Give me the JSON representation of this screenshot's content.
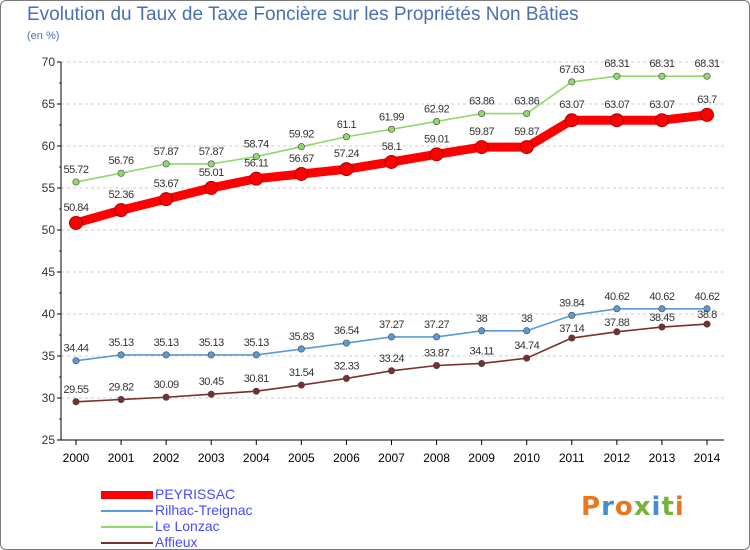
{
  "page": {
    "title": "Evolution du Taux de Taxe Foncière sur les Propriétés Non Bâties",
    "unit": "(en %)",
    "logo_text": "Proxiti"
  },
  "colors": {
    "title": "#4a6fb3",
    "grid": "#cccccc",
    "axis": "#000000",
    "legend_text": "#4a4aff",
    "logo": [
      "#e87722",
      "#3f8fd2",
      "#e87722",
      "#77b23b",
      "#3f8fd2",
      "#77b23b",
      "#e87722"
    ]
  },
  "chart_data": {
    "type": "line",
    "title": "Evolution du Taux de Taxe Foncière sur les Propriétés Non Bâties",
    "ylabel": "(en %)",
    "xlabel": "",
    "ylim": [
      25,
      70
    ],
    "yticks": [
      25,
      30,
      35,
      40,
      45,
      50,
      55,
      60,
      65,
      70
    ],
    "grid": "horizontal dashed",
    "legend_position": "bottom-left",
    "categories": [
      "2000",
      "2001",
      "2002",
      "2003",
      "2004",
      "2005",
      "2006",
      "2007",
      "2008",
      "2009",
      "2010",
      "2011",
      "2012",
      "2013",
      "2014"
    ],
    "series": [
      {
        "name": "PEYRISSAC",
        "color": "#ff0000",
        "values": [
          50.84,
          52.36,
          53.67,
          55.01,
          56.11,
          56.67,
          57.24,
          58.1,
          59.01,
          59.87,
          59.87,
          63.07,
          63.07,
          63.07,
          63.7
        ],
        "labels": [
          "50.84",
          "52.36",
          "53.67",
          "55.01",
          "56.11",
          "56.67",
          "57.24",
          "58.1",
          "59.01",
          "59.87",
          "59.87",
          "63.07",
          "63.07",
          "63.07",
          "63.7"
        ]
      },
      {
        "name": "Rilhac-Treignac",
        "color": "#5b9bd5",
        "values": [
          34.44,
          35.13,
          35.13,
          35.13,
          35.13,
          35.83,
          36.54,
          37.27,
          37.27,
          38,
          38,
          39.84,
          40.62,
          40.62,
          40.62
        ],
        "labels": [
          "34.44",
          "35.13",
          "35.13",
          "35.13",
          "35.13",
          "35.83",
          "36.54",
          "37.27",
          "37.27",
          "38",
          "38",
          "39.84",
          "40.62",
          "40.62",
          "40.62"
        ]
      },
      {
        "name": "Le Lonzac",
        "color": "#8fd86a",
        "values": [
          55.72,
          56.76,
          57.87,
          57.87,
          58.74,
          59.92,
          61.1,
          61.99,
          62.92,
          63.86,
          63.86,
          67.63,
          68.31,
          68.31,
          68.31
        ],
        "labels": [
          "55.72",
          "56.76",
          "57.87",
          "57.87",
          "58.74",
          "59.92",
          "61.1",
          "61.99",
          "62.92",
          "63.86",
          "63.86",
          "67.63",
          "68.31",
          "68.31",
          "68.31"
        ]
      },
      {
        "name": "Affieux",
        "color": "#7a2e2e",
        "values": [
          29.55,
          29.82,
          30.09,
          30.45,
          30.81,
          31.54,
          32.33,
          33.24,
          33.87,
          34.11,
          34.74,
          37.14,
          37.88,
          38.45,
          38.8
        ],
        "labels": [
          "29.55",
          "29.82",
          "30.09",
          "30.45",
          "30.81",
          "31.54",
          "32.33",
          "33.24",
          "33.87",
          "34.11",
          "34.74",
          "37.14",
          "37.88",
          "38.45",
          "38.8"
        ]
      }
    ]
  }
}
